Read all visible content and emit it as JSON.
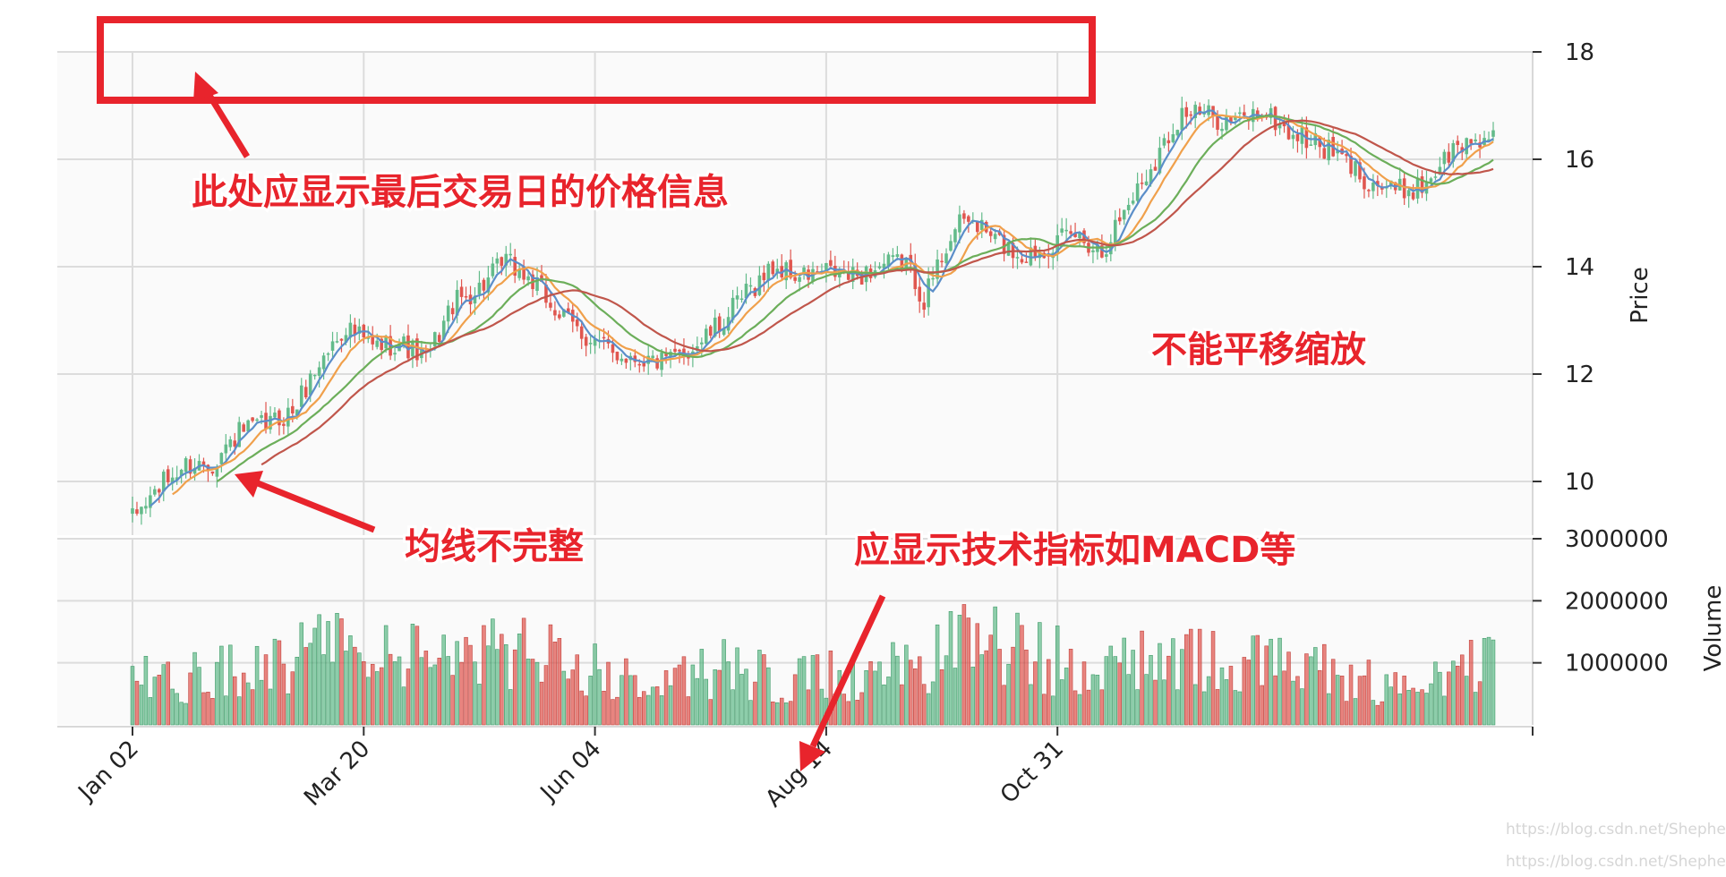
{
  "chart_data": {
    "type": "candlestick",
    "xlabel": "",
    "date_ticks": [
      "Jan 02",
      "Mar 20",
      "Jun 04",
      "Aug 14",
      "Oct 31"
    ],
    "price_panel": {
      "ylabel": "Price",
      "ylim": [
        9,
        18
      ],
      "y_ticks": [
        "10",
        "12",
        "14",
        "16",
        "18"
      ],
      "grid": true,
      "moving_average_colors": [
        "#5b8ec9",
        "#f0a04b",
        "#6cae5a",
        "#c0564b"
      ]
    },
    "volume_panel": {
      "ylabel": "Volume",
      "ylim": [
        0,
        3000000
      ],
      "y_ticks": [
        "1000000",
        "2000000",
        "3000000"
      ],
      "grid": true
    },
    "up_color": "#63bb8a",
    "down_color": "#e0564f",
    "close_anchors": [
      [
        0,
        9.3
      ],
      [
        6,
        9.9
      ],
      [
        12,
        10.3
      ],
      [
        18,
        10.35
      ],
      [
        24,
        10.9
      ],
      [
        30,
        11.05
      ],
      [
        36,
        11.3
      ],
      [
        42,
        12.2
      ],
      [
        48,
        12.9
      ],
      [
        54,
        12.5
      ],
      [
        60,
        12.6
      ],
      [
        66,
        12.25
      ],
      [
        72,
        13.3
      ],
      [
        78,
        13.6
      ],
      [
        84,
        14.1
      ],
      [
        90,
        13.7
      ],
      [
        96,
        13.1
      ],
      [
        102,
        12.7
      ],
      [
        108,
        12.4
      ],
      [
        114,
        12.3
      ],
      [
        120,
        12.2
      ],
      [
        126,
        12.5
      ],
      [
        132,
        12.9
      ],
      [
        138,
        13.5
      ],
      [
        144,
        14.0
      ],
      [
        150,
        13.8
      ],
      [
        156,
        13.9
      ],
      [
        162,
        13.8
      ],
      [
        168,
        14.0
      ],
      [
        174,
        14.1
      ],
      [
        178,
        13.4
      ],
      [
        184,
        14.6
      ],
      [
        188,
        14.9
      ],
      [
        194,
        14.5
      ],
      [
        200,
        14.2
      ],
      [
        206,
        14.4
      ],
      [
        212,
        14.6
      ],
      [
        218,
        14.3
      ],
      [
        224,
        15.2
      ],
      [
        230,
        16.0
      ],
      [
        236,
        16.9
      ],
      [
        242,
        16.8
      ],
      [
        248,
        16.7
      ],
      [
        254,
        16.9
      ],
      [
        260,
        16.5
      ],
      [
        266,
        16.3
      ],
      [
        272,
        16.0
      ],
      [
        278,
        15.6
      ],
      [
        284,
        15.4
      ],
      [
        290,
        15.5
      ],
      [
        296,
        16.1
      ],
      [
        302,
        16.4
      ],
      [
        306,
        16.4
      ]
    ],
    "volume_envelope": [
      [
        0,
        700000
      ],
      [
        20,
        800000
      ],
      [
        40,
        1200000
      ],
      [
        55,
        1100000
      ],
      [
        70,
        1000000
      ],
      [
        85,
        1200000
      ],
      [
        100,
        900000
      ],
      [
        115,
        650000
      ],
      [
        130,
        900000
      ],
      [
        150,
        700000
      ],
      [
        175,
        900000
      ],
      [
        190,
        1400000
      ],
      [
        205,
        1050000
      ],
      [
        220,
        900000
      ],
      [
        235,
        1000000
      ],
      [
        250,
        950000
      ],
      [
        265,
        850000
      ],
      [
        280,
        650000
      ],
      [
        295,
        800000
      ],
      [
        306,
        900000
      ]
    ]
  },
  "annotations": {
    "last_day_info": "此处应显示最后交易日的价格信息",
    "no_pan_zoom": "不能平移缩放",
    "ma_incomplete": "均线不完整",
    "need_indicators": "应显示技术指标如MACD等"
  },
  "watermark": [
    "https://blog.csdn.net/Shepherdppz",
    "https://blog.csdn.net/Shepherdppz"
  ],
  "colors": {
    "annotation_red": "#e8242c",
    "panel_bg": "#fafafa",
    "grid": "#dcdcdc"
  }
}
